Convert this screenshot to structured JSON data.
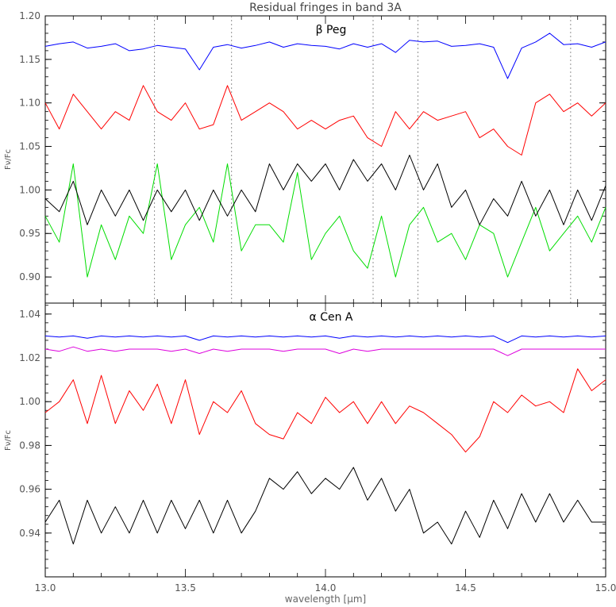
{
  "figure": {
    "title": "Residual fringes in band 3A",
    "xlabel": "wavelength [μm]"
  },
  "chart_data": [
    {
      "type": "line",
      "panel": "top",
      "annotation": "β Peg",
      "ylabel": "Fν/Fc",
      "xlim": [
        13.0,
        15.0
      ],
      "ylim": [
        0.87,
        1.2
      ],
      "xticks": [
        "13.0",
        "13.5",
        "14.0",
        "14.5",
        "15.0"
      ],
      "yticks": [
        "0.90",
        "0.95",
        "1.00",
        "1.05",
        "1.10",
        "1.15",
        "1.20"
      ],
      "vlines": [
        13.39,
        13.665,
        14.17,
        14.33,
        14.875
      ],
      "series": [
        {
          "color": "#0000ff",
          "x": [
            13.0,
            13.05,
            13.1,
            13.15,
            13.2,
            13.25,
            13.3,
            13.35,
            13.4,
            13.45,
            13.5,
            13.55,
            13.6,
            13.65,
            13.7,
            13.75,
            13.8,
            13.85,
            13.9,
            13.95,
            14.0,
            14.05,
            14.1,
            14.15,
            14.2,
            14.25,
            14.3,
            14.35,
            14.4,
            14.45,
            14.5,
            14.55,
            14.6,
            14.65,
            14.7,
            14.75,
            14.8,
            14.85,
            14.9,
            14.95,
            15.0
          ],
          "values": [
            1.165,
            1.168,
            1.17,
            1.163,
            1.165,
            1.168,
            1.16,
            1.162,
            1.166,
            1.164,
            1.162,
            1.138,
            1.164,
            1.167,
            1.163,
            1.166,
            1.17,
            1.164,
            1.168,
            1.166,
            1.165,
            1.162,
            1.168,
            1.164,
            1.168,
            1.158,
            1.172,
            1.17,
            1.171,
            1.165,
            1.166,
            1.168,
            1.164,
            1.128,
            1.163,
            1.17,
            1.18,
            1.167,
            1.168,
            1.164,
            1.17
          ]
        },
        {
          "color": "#ff0000",
          "x": [
            13.0,
            13.05,
            13.1,
            13.15,
            13.2,
            13.25,
            13.3,
            13.35,
            13.4,
            13.45,
            13.5,
            13.55,
            13.6,
            13.65,
            13.7,
            13.75,
            13.8,
            13.85,
            13.9,
            13.95,
            14.0,
            14.05,
            14.1,
            14.15,
            14.2,
            14.25,
            14.3,
            14.35,
            14.4,
            14.45,
            14.5,
            14.55,
            14.6,
            14.65,
            14.7,
            14.75,
            14.8,
            14.85,
            14.9,
            14.95,
            15.0
          ],
          "values": [
            1.1,
            1.07,
            1.11,
            1.09,
            1.07,
            1.09,
            1.08,
            1.12,
            1.09,
            1.08,
            1.1,
            1.07,
            1.075,
            1.12,
            1.08,
            1.09,
            1.1,
            1.09,
            1.07,
            1.08,
            1.07,
            1.08,
            1.085,
            1.06,
            1.05,
            1.09,
            1.07,
            1.09,
            1.08,
            1.085,
            1.09,
            1.06,
            1.07,
            1.05,
            1.04,
            1.1,
            1.11,
            1.09,
            1.1,
            1.085,
            1.1
          ]
        },
        {
          "color": "#00dd00",
          "x": [
            13.0,
            13.05,
            13.1,
            13.15,
            13.2,
            13.25,
            13.3,
            13.35,
            13.4,
            13.45,
            13.5,
            13.55,
            13.6,
            13.65,
            13.7,
            13.75,
            13.8,
            13.85,
            13.9,
            13.95,
            14.0,
            14.05,
            14.1,
            14.15,
            14.2,
            14.25,
            14.3,
            14.35,
            14.4,
            14.45,
            14.5,
            14.55,
            14.6,
            14.65,
            14.7,
            14.75,
            14.8,
            14.85,
            14.9,
            14.95,
            15.0
          ],
          "values": [
            0.97,
            0.94,
            1.03,
            0.9,
            0.96,
            0.92,
            0.97,
            0.95,
            1.03,
            0.92,
            0.96,
            0.98,
            0.94,
            1.03,
            0.93,
            0.96,
            0.96,
            0.94,
            1.02,
            0.92,
            0.95,
            0.97,
            0.93,
            0.91,
            0.97,
            0.9,
            0.96,
            0.98,
            0.94,
            0.95,
            0.92,
            0.96,
            0.95,
            0.9,
            0.94,
            0.98,
            0.93,
            0.95,
            0.97,
            0.94,
            0.98
          ]
        },
        {
          "color": "#000000",
          "x": [
            13.0,
            13.05,
            13.1,
            13.15,
            13.2,
            13.25,
            13.3,
            13.35,
            13.4,
            13.45,
            13.5,
            13.55,
            13.6,
            13.65,
            13.7,
            13.75,
            13.8,
            13.85,
            13.9,
            13.95,
            14.0,
            14.05,
            14.1,
            14.15,
            14.2,
            14.25,
            14.3,
            14.35,
            14.4,
            14.45,
            14.5,
            14.55,
            14.6,
            14.65,
            14.7,
            14.75,
            14.8,
            14.85,
            14.9,
            14.95,
            15.0
          ],
          "values": [
            0.99,
            0.975,
            1.01,
            0.96,
            1.0,
            0.97,
            1.0,
            0.965,
            1.0,
            0.975,
            1.0,
            0.965,
            1.0,
            0.97,
            1.0,
            0.975,
            1.03,
            1.0,
            1.03,
            1.01,
            1.03,
            1.0,
            1.035,
            1.01,
            1.03,
            1.0,
            1.04,
            1.0,
            1.03,
            0.98,
            1.0,
            0.96,
            0.99,
            0.97,
            1.01,
            0.97,
            1.0,
            0.96,
            1.0,
            0.965,
            1.005
          ]
        }
      ]
    },
    {
      "type": "line",
      "panel": "bottom",
      "annotation": "α Cen A",
      "ylabel": "Fν/Fc",
      "xlim": [
        13.0,
        15.0
      ],
      "ylim": [
        0.92,
        1.045
      ],
      "xticks": [
        "13.0",
        "13.5",
        "14.0",
        "14.5",
        "15.0"
      ],
      "yticks": [
        "0.94",
        "0.96",
        "0.98",
        "1.00",
        "1.02",
        "1.04"
      ],
      "series": [
        {
          "color": "#0000ff",
          "x": [
            13.0,
            13.05,
            13.1,
            13.15,
            13.2,
            13.25,
            13.3,
            13.35,
            13.4,
            13.45,
            13.5,
            13.55,
            13.6,
            13.65,
            13.7,
            13.75,
            13.8,
            13.85,
            13.9,
            13.95,
            14.0,
            14.05,
            14.1,
            14.15,
            14.2,
            14.25,
            14.3,
            14.35,
            14.4,
            14.45,
            14.5,
            14.55,
            14.6,
            14.65,
            14.7,
            14.75,
            14.8,
            14.85,
            14.9,
            14.95,
            15.0
          ],
          "values": [
            1.03,
            1.0295,
            1.03,
            1.029,
            1.03,
            1.0295,
            1.03,
            1.0295,
            1.03,
            1.0295,
            1.03,
            1.028,
            1.03,
            1.0295,
            1.03,
            1.0295,
            1.03,
            1.0295,
            1.03,
            1.0295,
            1.03,
            1.029,
            1.03,
            1.0295,
            1.03,
            1.0295,
            1.03,
            1.0295,
            1.03,
            1.0295,
            1.03,
            1.0295,
            1.03,
            1.027,
            1.03,
            1.0295,
            1.03,
            1.0295,
            1.03,
            1.0295,
            1.03
          ]
        },
        {
          "color": "#dd00dd",
          "x": [
            13.0,
            13.05,
            13.1,
            13.15,
            13.2,
            13.25,
            13.3,
            13.35,
            13.4,
            13.45,
            13.5,
            13.55,
            13.6,
            13.65,
            13.7,
            13.75,
            13.8,
            13.85,
            13.9,
            13.95,
            14.0,
            14.05,
            14.1,
            14.15,
            14.2,
            14.25,
            14.3,
            14.35,
            14.4,
            14.45,
            14.5,
            14.55,
            14.6,
            14.65,
            14.7,
            14.75,
            14.8,
            14.85,
            14.9,
            14.95,
            15.0
          ],
          "values": [
            1.024,
            1.023,
            1.025,
            1.023,
            1.024,
            1.023,
            1.024,
            1.024,
            1.024,
            1.023,
            1.024,
            1.022,
            1.024,
            1.023,
            1.024,
            1.024,
            1.024,
            1.023,
            1.024,
            1.024,
            1.024,
            1.022,
            1.024,
            1.023,
            1.024,
            1.024,
            1.024,
            1.024,
            1.024,
            1.024,
            1.024,
            1.024,
            1.024,
            1.021,
            1.024,
            1.024,
            1.024,
            1.024,
            1.024,
            1.024,
            1.024
          ]
        },
        {
          "color": "#ff0000",
          "x": [
            13.0,
            13.05,
            13.1,
            13.15,
            13.2,
            13.25,
            13.3,
            13.35,
            13.4,
            13.45,
            13.5,
            13.55,
            13.6,
            13.65,
            13.7,
            13.75,
            13.8,
            13.85,
            13.9,
            13.95,
            14.0,
            14.05,
            14.1,
            14.15,
            14.2,
            14.25,
            14.3,
            14.35,
            14.4,
            14.45,
            14.5,
            14.55,
            14.6,
            14.65,
            14.7,
            14.75,
            14.8,
            14.85,
            14.9,
            14.95,
            15.0
          ],
          "values": [
            0.995,
            1.0,
            1.01,
            0.99,
            1.012,
            0.99,
            1.005,
            0.996,
            1.008,
            0.99,
            1.01,
            0.985,
            1.0,
            0.995,
            1.005,
            0.99,
            0.985,
            0.983,
            0.995,
            0.99,
            1.002,
            0.995,
            1.0,
            0.99,
            1.0,
            0.99,
            0.998,
            0.995,
            0.99,
            0.985,
            0.977,
            0.984,
            1.0,
            0.995,
            1.003,
            0.998,
            1.0,
            0.995,
            1.015,
            1.005,
            1.01
          ]
        },
        {
          "color": "#000000",
          "x": [
            13.0,
            13.05,
            13.1,
            13.15,
            13.2,
            13.25,
            13.3,
            13.35,
            13.4,
            13.45,
            13.5,
            13.55,
            13.6,
            13.65,
            13.7,
            13.75,
            13.8,
            13.85,
            13.9,
            13.95,
            14.0,
            14.05,
            14.1,
            14.15,
            14.2,
            14.25,
            14.3,
            14.35,
            14.4,
            14.45,
            14.5,
            14.55,
            14.6,
            14.65,
            14.7,
            14.75,
            14.8,
            14.85,
            14.9,
            14.95,
            15.0
          ],
          "values": [
            0.945,
            0.955,
            0.935,
            0.955,
            0.94,
            0.952,
            0.94,
            0.955,
            0.94,
            0.955,
            0.942,
            0.955,
            0.94,
            0.955,
            0.94,
            0.95,
            0.965,
            0.96,
            0.968,
            0.958,
            0.965,
            0.96,
            0.97,
            0.955,
            0.965,
            0.95,
            0.96,
            0.94,
            0.945,
            0.935,
            0.95,
            0.938,
            0.955,
            0.942,
            0.958,
            0.945,
            0.958,
            0.945,
            0.955,
            0.945,
            0.945
          ]
        }
      ]
    }
  ]
}
